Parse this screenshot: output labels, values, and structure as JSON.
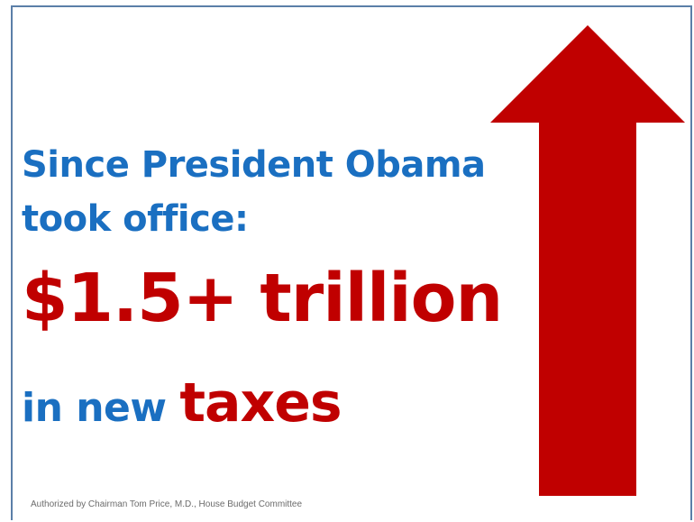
{
  "headline": {
    "line1": "Since President Obama",
    "line2": "took office:",
    "amount": "$1.5+ trillion",
    "line4_prefix": "in new ",
    "line4_emphasis": "taxes"
  },
  "footer": {
    "text": "Authorized by Chairman Tom Price, M.D., House Budget Committee"
  },
  "colors": {
    "blue_text": "#1a6fc1",
    "red_text": "#c00000",
    "arrow": "#c00000",
    "border": "#5b7fa8"
  },
  "icons": {
    "arrow": "up-arrow-icon"
  }
}
